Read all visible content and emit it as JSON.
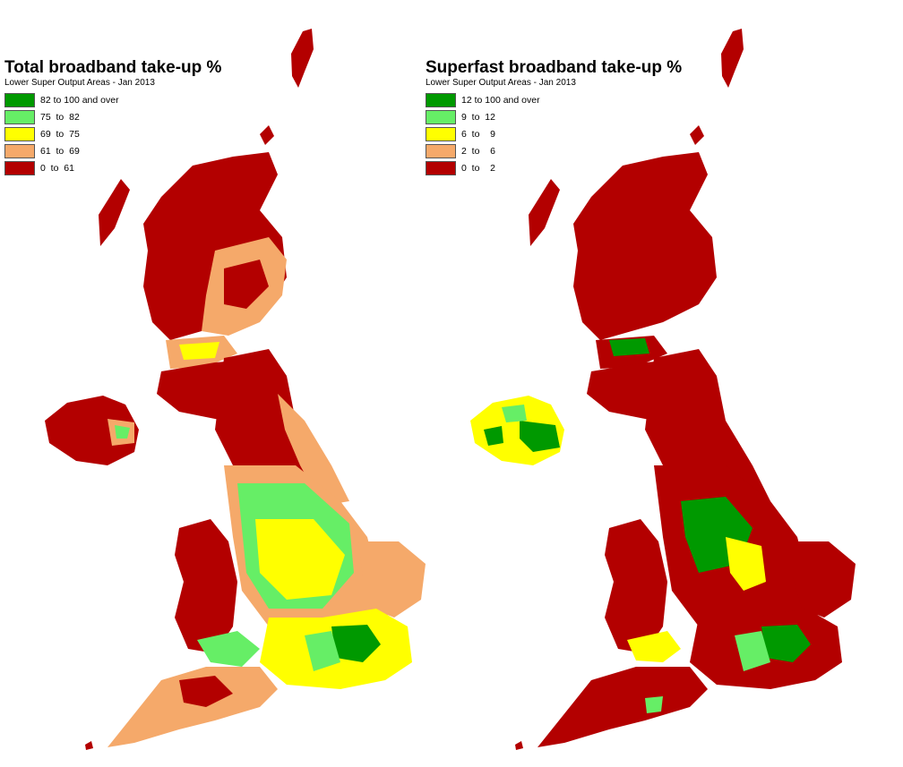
{
  "maps": [
    {
      "title": "Total broadband take-up %",
      "subtitle": "Lower Super Output Areas - Jan 2013",
      "legend": [
        {
          "label": "82 to 100 and over",
          "color": "#009900"
        },
        {
          "label": "75  to  82",
          "color": "#66ee66"
        },
        {
          "label": "69  to  75",
          "color": "#ffff00"
        },
        {
          "label": "61  to  69",
          "color": "#f5a96a"
        },
        {
          "label": "0  to  61",
          "color": "#b30000"
        }
      ]
    },
    {
      "title": "Superfast broadband take-up %",
      "subtitle": "Lower Super Output Areas - Jan 2013",
      "legend": [
        {
          "label": "12 to 100 and over",
          "color": "#009900"
        },
        {
          "label": "9  to  12",
          "color": "#66ee66"
        },
        {
          "label": "6  to    9",
          "color": "#ffff00"
        },
        {
          "label": "2  to    6",
          "color": "#f5a96a"
        },
        {
          "label": "0  to    2",
          "color": "#b30000"
        }
      ]
    }
  ]
}
